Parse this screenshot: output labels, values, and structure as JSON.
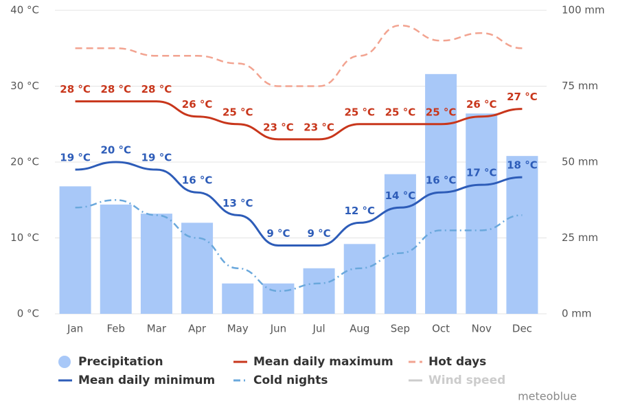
{
  "chart_data": {
    "type": "combo",
    "categories": [
      "Jan",
      "Feb",
      "Mar",
      "Apr",
      "May",
      "Jun",
      "Jul",
      "Aug",
      "Sep",
      "Oct",
      "Nov",
      "Dec"
    ],
    "ylim": [
      0,
      40
    ],
    "yticks": [
      {
        "value": 0,
        "label": "0 °C"
      },
      {
        "value": 10,
        "label": "10 °C"
      },
      {
        "value": 20,
        "label": "20 °C"
      },
      {
        "value": 30,
        "label": "30 °C"
      },
      {
        "value": 40,
        "label": "40 °C"
      }
    ],
    "y2lim": [
      0,
      100
    ],
    "y2ticks": [
      {
        "value": 0,
        "label": "0 mm"
      },
      {
        "value": 25,
        "label": "25 mm"
      },
      {
        "value": 50,
        "label": "50 mm"
      },
      {
        "value": 75,
        "label": "75 mm"
      },
      {
        "value": 100,
        "label": "100 mm"
      }
    ],
    "grid": true,
    "legend": "bottom",
    "series": [
      {
        "name": "Precipitation",
        "type": "bar",
        "axis": "y2",
        "color": "#a8c8f8",
        "values": [
          42,
          36,
          33,
          30,
          10,
          10,
          15,
          23,
          46,
          79,
          66,
          52
        ]
      },
      {
        "name": "Mean daily maximum",
        "type": "line",
        "style": "solid",
        "color": "#c8361b",
        "values": [
          28,
          28,
          28,
          26,
          25,
          23,
          23,
          25,
          25,
          25,
          26,
          27
        ],
        "value_labels": [
          "28 °C",
          "28 °C",
          "28 °C",
          "26 °C",
          "25 °C",
          "23 °C",
          "23 °C",
          "25 °C",
          "25 °C",
          "25 °C",
          "26 °C",
          "27 °C"
        ]
      },
      {
        "name": "Hot days",
        "type": "line",
        "style": "dashed",
        "color": "#f2a390",
        "values": [
          35,
          35,
          34,
          34,
          33,
          30,
          30,
          34,
          38,
          36,
          37,
          35
        ]
      },
      {
        "name": "Mean daily minimum",
        "type": "line",
        "style": "solid",
        "color": "#2d5cb8",
        "values": [
          19,
          20,
          19,
          16,
          13,
          9,
          9,
          12,
          14,
          16,
          17,
          18
        ],
        "value_labels": [
          "19 °C",
          "20 °C",
          "19 °C",
          "16 °C",
          "13 °C",
          "9 °C",
          "9 °C",
          "12 °C",
          "14 °C",
          "16 °C",
          "17 °C",
          "18 °C"
        ]
      },
      {
        "name": "Cold nights",
        "type": "line",
        "style": "dashdot",
        "color": "#6aa8dc",
        "values": [
          14,
          15,
          13,
          10,
          6,
          3,
          4,
          6,
          8,
          11,
          11,
          13
        ]
      },
      {
        "name": "Wind speed",
        "type": "line",
        "style": "solid",
        "color": "#cccccc",
        "hidden": true
      }
    ],
    "credit": "meteoblue"
  }
}
